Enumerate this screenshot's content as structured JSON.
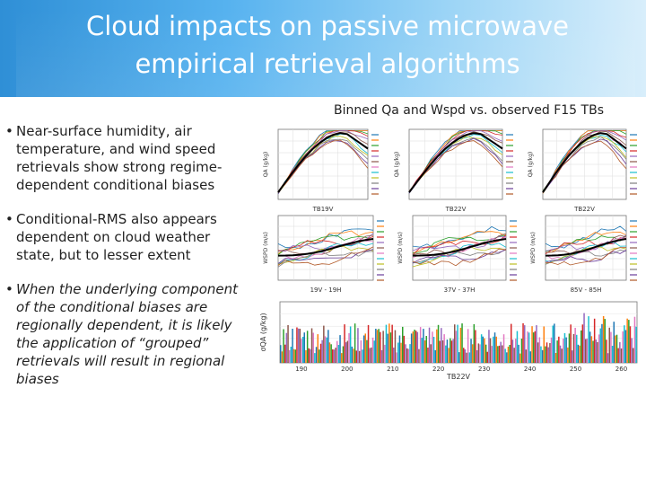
{
  "slide": {
    "title_line1": "Cloud impacts on passive microwave",
    "title_line2": "empirical retrieval algorithms",
    "figure_caption": "Binned Qa and Wspd vs. observed F15 TBs",
    "bullets": [
      "Near-surface humidity, air temperature, and wind speed retrievals show strong regime-dependent conditional biases",
      "Conditional-RMS also appears dependent on cloud weather state, but to lesser extent",
      "When the underlying component of the conditional biases are regionally dependent, it is likely the application of “grouped” retrievals will result in regional biases"
    ],
    "bullet_marker": "•"
  },
  "chart_data": [
    {
      "type": "line",
      "panel": "qa-19v",
      "xlabel": "TB19V",
      "ylabel": "QA (g/kg)"
    },
    {
      "type": "line",
      "panel": "qa-22v",
      "xlabel": "TB22V",
      "ylabel": "QA (g/kg)"
    },
    {
      "type": "line",
      "panel": "qa-22v-b",
      "xlabel": "TB22V",
      "ylabel": "QA (g/kg)"
    },
    {
      "type": "line",
      "panel": "wspd-19",
      "xlabel": "19V - 19H",
      "ylabel": "WSPD (m/s)"
    },
    {
      "type": "line",
      "panel": "wspd-37",
      "xlabel": "37V - 37H",
      "ylabel": "WSPD (m/s)"
    },
    {
      "type": "line",
      "panel": "wspd-85",
      "xlabel": "85V - 85H",
      "ylabel": "WSPD (m/s)"
    },
    {
      "type": "bar",
      "panel": "sigma-qa",
      "xlabel": "TB22V",
      "ylabel": "σQA (g/kg)",
      "x_ticks": [
        "190",
        "200",
        "210",
        "220",
        "230",
        "240",
        "250",
        "260"
      ]
    }
  ],
  "colors": {
    "header_start": "#2f8fd6",
    "header_end": "#d8eefb",
    "text": "#222222"
  }
}
